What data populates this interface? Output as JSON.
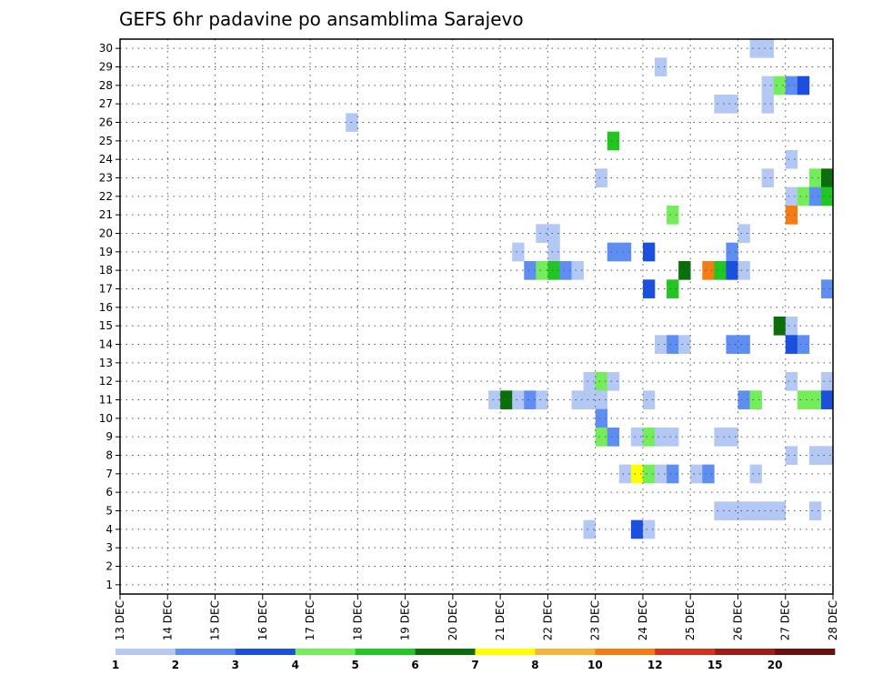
{
  "chart_data": {
    "type": "heatmap",
    "title": "GEFS 6hr padavine po ansamblima Sarajevo",
    "xlabel": "",
    "ylabel": "",
    "x_ticks": [
      "13 DEC",
      "14 DEC",
      "15 DEC",
      "16 DEC",
      "17 DEC",
      "18 DEC",
      "19 DEC",
      "20 DEC",
      "21 DEC",
      "22 DEC",
      "23 DEC",
      "24 DEC",
      "25 DEC",
      "26 DEC",
      "27 DEC",
      "28 DEC"
    ],
    "y_ticks": [
      "1",
      "2",
      "3",
      "4",
      "5",
      "6",
      "7",
      "8",
      "9",
      "10",
      "11",
      "12",
      "13",
      "14",
      "15",
      "16",
      "17",
      "18",
      "19",
      "20",
      "21",
      "22",
      "23",
      "24",
      "25",
      "26",
      "27",
      "28",
      "29",
      "30"
    ],
    "xlim": [
      0,
      60
    ],
    "ylim": [
      0.5,
      30.5
    ],
    "x_unit": "6-hour step from 13 DEC 00Z",
    "grid": "dotted",
    "colorbar": {
      "levels": [
        "1",
        "2",
        "3",
        "4",
        "5",
        "6",
        "7",
        "8",
        "10",
        "12",
        "15",
        "20"
      ],
      "colors": [
        "#b3c8f5",
        "#5f8ef2",
        "#1b4fe0",
        "#73ee5a",
        "#21c621",
        "#0a6e0a",
        "#ffff00",
        "#f6b53a",
        "#f57c14",
        "#d7301c",
        "#a21b15",
        "#6b0e0e"
      ]
    },
    "cells": [
      [
        53,
        30,
        0
      ],
      [
        54,
        30,
        0
      ],
      [
        45,
        29,
        0
      ],
      [
        54,
        28,
        0
      ],
      [
        55,
        28,
        3
      ],
      [
        56,
        28,
        1
      ],
      [
        57,
        28,
        2
      ],
      [
        50,
        27,
        0
      ],
      [
        51,
        27,
        0
      ],
      [
        54,
        27,
        0
      ],
      [
        19,
        26,
        0
      ],
      [
        41,
        25,
        4
      ],
      [
        56,
        24,
        0
      ],
      [
        40,
        23,
        0
      ],
      [
        54,
        23,
        0
      ],
      [
        58,
        23,
        3
      ],
      [
        59,
        23,
        5
      ],
      [
        56,
        22,
        0
      ],
      [
        57,
        22,
        3
      ],
      [
        58,
        22,
        1
      ],
      [
        59,
        22,
        4
      ],
      [
        46,
        21,
        3
      ],
      [
        56,
        21,
        8
      ],
      [
        35,
        20,
        0
      ],
      [
        36,
        20,
        0
      ],
      [
        52,
        20,
        0
      ],
      [
        33,
        19,
        0
      ],
      [
        36,
        19,
        0
      ],
      [
        41,
        19,
        1
      ],
      [
        42,
        19,
        1
      ],
      [
        44,
        19,
        2
      ],
      [
        51,
        19,
        1
      ],
      [
        34,
        18,
        1
      ],
      [
        35,
        18,
        3
      ],
      [
        36,
        18,
        4
      ],
      [
        37,
        18,
        1
      ],
      [
        38,
        18,
        0
      ],
      [
        47,
        18,
        5
      ],
      [
        49,
        18,
        8
      ],
      [
        50,
        18,
        4
      ],
      [
        51,
        18,
        2
      ],
      [
        52,
        18,
        0
      ],
      [
        44,
        17,
        2
      ],
      [
        46,
        17,
        4
      ],
      [
        59,
        17,
        1
      ],
      [
        55,
        15,
        5
      ],
      [
        56,
        15,
        0
      ],
      [
        45,
        14,
        0
      ],
      [
        46,
        14,
        1
      ],
      [
        47,
        14,
        0
      ],
      [
        51,
        14,
        1
      ],
      [
        52,
        14,
        1
      ],
      [
        56,
        14,
        2
      ],
      [
        57,
        14,
        1
      ],
      [
        39,
        12,
        0
      ],
      [
        40,
        12,
        3
      ],
      [
        41,
        12,
        0
      ],
      [
        56,
        12,
        0
      ],
      [
        59,
        12,
        0
      ],
      [
        31,
        11,
        0
      ],
      [
        32,
        11,
        5
      ],
      [
        33,
        11,
        0
      ],
      [
        34,
        11,
        1
      ],
      [
        35,
        11,
        0
      ],
      [
        38,
        11,
        0
      ],
      [
        39,
        11,
        0
      ],
      [
        40,
        11,
        0
      ],
      [
        44,
        11,
        0
      ],
      [
        52,
        11,
        1
      ],
      [
        53,
        11,
        3
      ],
      [
        57,
        11,
        3
      ],
      [
        58,
        11,
        3
      ],
      [
        59,
        11,
        2
      ],
      [
        40,
        10,
        1
      ],
      [
        40,
        9,
        3
      ],
      [
        41,
        9,
        1
      ],
      [
        43,
        9,
        0
      ],
      [
        44,
        9,
        3
      ],
      [
        45,
        9,
        0
      ],
      [
        46,
        9,
        0
      ],
      [
        50,
        9,
        0
      ],
      [
        51,
        9,
        0
      ],
      [
        56,
        8,
        0
      ],
      [
        58,
        8,
        0
      ],
      [
        59,
        8,
        0
      ],
      [
        42,
        7,
        0
      ],
      [
        43,
        7,
        6
      ],
      [
        44,
        7,
        3
      ],
      [
        45,
        7,
        0
      ],
      [
        46,
        7,
        1
      ],
      [
        48,
        7,
        0
      ],
      [
        49,
        7,
        1
      ],
      [
        53,
        7,
        0
      ],
      [
        50,
        5,
        0
      ],
      [
        51,
        5,
        0
      ],
      [
        52,
        5,
        0
      ],
      [
        53,
        5,
        0
      ],
      [
        54,
        5,
        0
      ],
      [
        55,
        5,
        0
      ],
      [
        58,
        5,
        0
      ],
      [
        39,
        4,
        0
      ],
      [
        43,
        4,
        2
      ],
      [
        44,
        4,
        0
      ]
    ]
  }
}
